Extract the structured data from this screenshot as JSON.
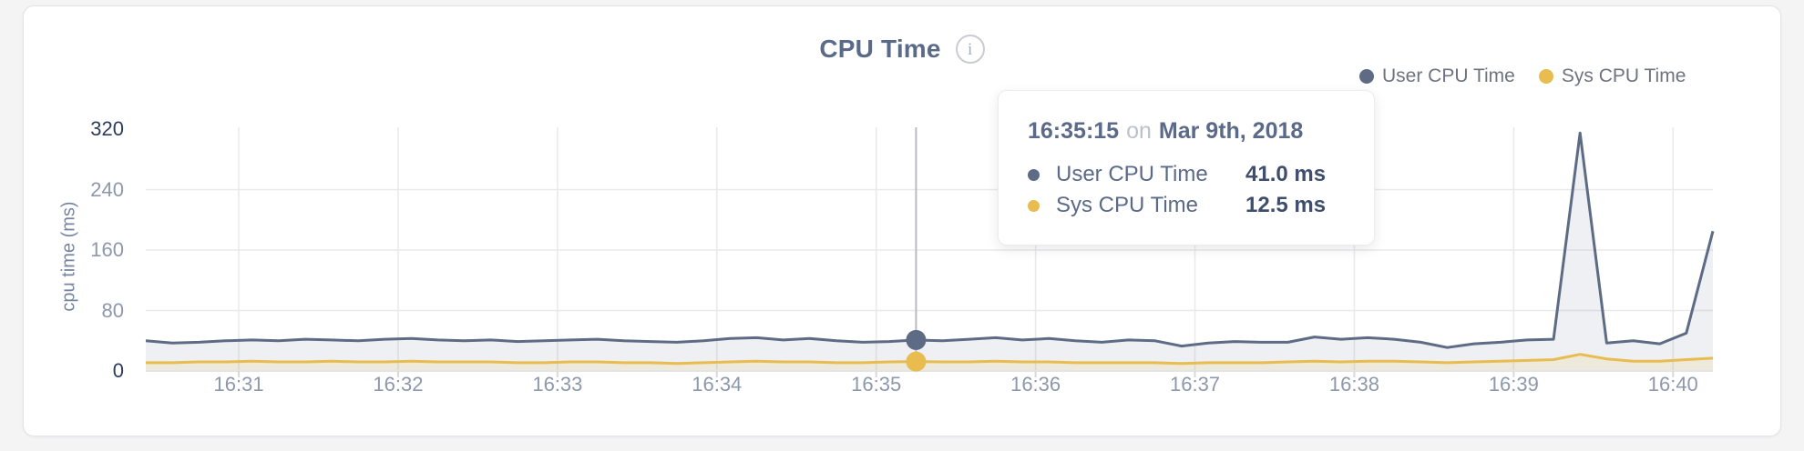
{
  "page": {
    "background": "#f4f4f5",
    "card_background": "#ffffff",
    "card_border": "#e3e3e6"
  },
  "header": {
    "title": "CPU Time",
    "info_icon_glyph": "i"
  },
  "legend": [
    {
      "label": "User CPU Time",
      "color": "#5d6b85"
    },
    {
      "label": "Sys CPU Time",
      "color": "#e9bc4f"
    }
  ],
  "tooltip": {
    "time": "16:35:15",
    "conjunction": "on",
    "date": "Mar 9th, 2018",
    "rows": [
      {
        "label": "User CPU Time",
        "value": "41.0 ms",
        "color": "#5d6b85"
      },
      {
        "label": "Sys CPU Time",
        "value": "12.5 ms",
        "color": "#e9bc4f"
      }
    ]
  },
  "chart_data": {
    "type": "area",
    "title": "CPU Time",
    "ylabel": "cpu time (ms)",
    "ylim": [
      0,
      320
    ],
    "yticks": [
      0,
      80,
      160,
      240,
      320
    ],
    "ytick_dark_values": [
      0,
      320
    ],
    "xticks": [
      "16:31",
      "16:32",
      "16:33",
      "16:34",
      "16:35",
      "16:36",
      "16:37",
      "16:38",
      "16:39",
      "16:40"
    ],
    "grid": "horizontal-at-80-160-240-and-vertical-at-minutes",
    "legend_position": "top-right",
    "x_start_time": "16:30:25",
    "x_end_time": "16:40:15",
    "interval_seconds": 10,
    "layout": {
      "x_start_offset_seconds": 25,
      "x_span_seconds": 590,
      "first_tick_offset_seconds": 60,
      "tick_interval_seconds": 60
    },
    "highlight": {
      "index": 29,
      "time": "16:35:15",
      "user_ms": 41.0,
      "sys_ms": 12.5,
      "crosshair_color": "#b7bbc2"
    },
    "colors": {
      "grid": "#eaeaed",
      "axis_tick": "#d9d9dc",
      "baseline": "#e4e4e7",
      "tick_label_light": "#8d98ac",
      "tick_label_dark": "#2d3c5e",
      "user_fill": "rgba(93,107,133,0.10)",
      "sys_fill": "rgba(233,188,76,0.14)"
    },
    "series": [
      {
        "name": "User CPU Time",
        "color": "#5d6b85",
        "values": [
          40,
          37,
          38,
          40,
          41,
          40,
          42,
          41,
          40,
          42,
          43,
          41,
          40,
          41,
          39,
          40,
          41,
          42,
          40,
          39,
          38,
          40,
          43,
          44,
          41,
          43,
          40,
          38,
          39,
          41,
          40,
          42,
          44,
          41,
          43,
          40,
          38,
          41,
          40,
          33,
          37,
          39,
          38,
          38,
          45,
          42,
          44,
          42,
          38,
          31,
          36,
          38,
          41,
          42,
          315,
          37,
          40,
          36,
          50,
          185
        ]
      },
      {
        "name": "Sys CPU Time",
        "color": "#e9bc4f",
        "values": [
          11,
          11,
          12,
          12,
          13,
          12,
          12,
          13,
          12,
          12,
          13,
          12,
          12,
          12,
          11,
          11,
          12,
          12,
          11,
          11,
          10,
          11,
          12,
          13,
          12,
          12,
          11,
          11,
          12,
          12.5,
          12,
          12,
          13,
          12,
          12,
          11,
          11,
          11,
          11,
          10,
          11,
          11,
          11,
          12,
          13,
          12,
          13,
          13,
          12,
          11,
          12,
          13,
          14,
          15,
          22,
          16,
          13,
          13,
          15,
          17
        ]
      }
    ]
  }
}
